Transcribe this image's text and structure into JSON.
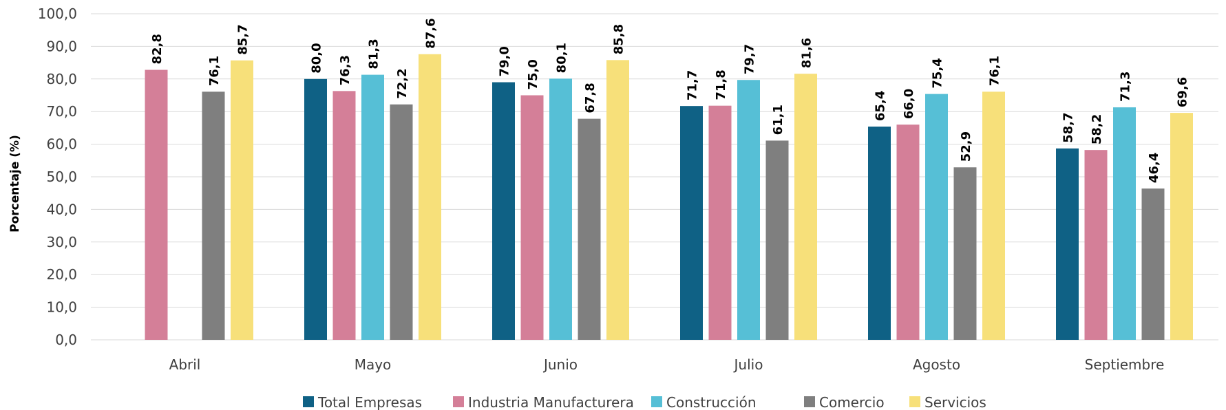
{
  "chart_data": {
    "type": "bar",
    "ylabel": "Porcentaje (%)",
    "ylim": [
      0,
      100
    ],
    "yticks": [
      "0,0",
      "10,0",
      "20,0",
      "30,0",
      "40,0",
      "50,0",
      "60,0",
      "70,0",
      "80,0",
      "90,0",
      "100,0"
    ],
    "grid": true,
    "legend": "bottom",
    "categories": [
      "Abril",
      "Mayo",
      "Junio",
      "Julio",
      "Agosto",
      "Septiembre"
    ],
    "series": [
      {
        "name": "Total Empresas",
        "color": "#0f6185",
        "values": [
          null,
          80.0,
          79.0,
          71.7,
          65.4,
          58.7
        ],
        "labels": [
          "",
          "80,0",
          "79,0",
          "71,7",
          "65,4",
          "58,7"
        ]
      },
      {
        "name": "Industria Manufacturera",
        "color": "#d47f98",
        "values": [
          82.8,
          76.3,
          75.0,
          71.8,
          66.0,
          58.2
        ],
        "labels": [
          "82,8",
          "76,3",
          "75,0",
          "71,8",
          "66,0",
          "58,2"
        ]
      },
      {
        "name": "Construcción",
        "color": "#56bfd6",
        "values": [
          null,
          81.3,
          80.1,
          79.7,
          75.4,
          71.3
        ],
        "labels": [
          "",
          "81,3",
          "80,1",
          "79,7",
          "75,4",
          "71,3"
        ]
      },
      {
        "name": "Comercio",
        "color": "#7f7f7f",
        "values": [
          76.1,
          72.2,
          67.8,
          61.1,
          52.9,
          46.4
        ],
        "labels": [
          "76,1",
          "72,2",
          "67,8",
          "61,1",
          "52,9",
          "46,4"
        ]
      },
      {
        "name": "Servicios",
        "color": "#f7e07a",
        "values": [
          85.7,
          87.6,
          85.8,
          81.6,
          76.1,
          69.6
        ],
        "labels": [
          "85,7",
          "87,6",
          "85,8",
          "81,6",
          "76,1",
          "69,6"
        ]
      }
    ]
  }
}
